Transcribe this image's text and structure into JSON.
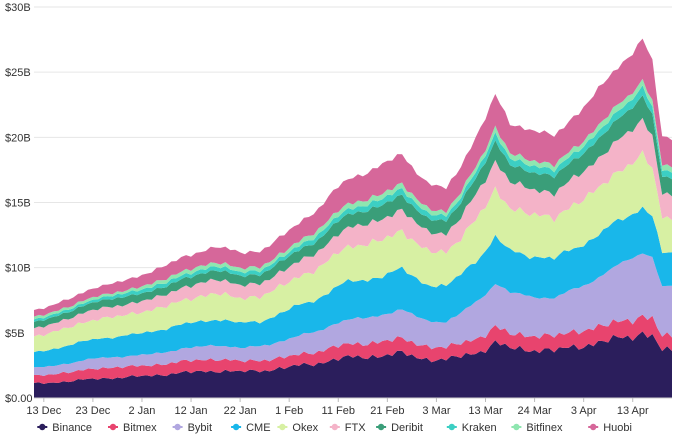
{
  "chart_data": {
    "type": "area",
    "stacked": true,
    "grid": true,
    "legend_position": "bottom",
    "title": "",
    "xlabel": "",
    "ylabel": "",
    "ylim": [
      0,
      30
    ],
    "yticks": [
      {
        "value": 0,
        "label": "$0.00"
      },
      {
        "value": 5,
        "label": "$5B"
      },
      {
        "value": 10,
        "label": "$10B"
      },
      {
        "value": 15,
        "label": "$15B"
      },
      {
        "value": 20,
        "label": "$20B"
      },
      {
        "value": 25,
        "label": "$25B"
      },
      {
        "value": 30,
        "label": "$30B"
      }
    ],
    "xticks": [
      {
        "index": 2,
        "label": "13 Dec"
      },
      {
        "index": 12,
        "label": "23 Dec"
      },
      {
        "index": 22,
        "label": "2 Jan"
      },
      {
        "index": 32,
        "label": "12 Jan"
      },
      {
        "index": 42,
        "label": "22 Jan"
      },
      {
        "index": 52,
        "label": "1 Feb"
      },
      {
        "index": 62,
        "label": "11 Feb"
      },
      {
        "index": 72,
        "label": "21 Feb"
      },
      {
        "index": 82,
        "label": "3 Mar"
      },
      {
        "index": 92,
        "label": "13 Mar"
      },
      {
        "index": 102,
        "label": "24 Mar"
      },
      {
        "index": 112,
        "label": "3 Apr"
      },
      {
        "index": 122,
        "label": "13 Apr"
      }
    ],
    "x_range": [
      0,
      130
    ],
    "x_keys": [
      0,
      8,
      13,
      20,
      26,
      33,
      37,
      42,
      46,
      51,
      58,
      62,
      65,
      72,
      75,
      80,
      84,
      86,
      91,
      94,
      97,
      103,
      106,
      111,
      116,
      121,
      124,
      126,
      128,
      130
    ],
    "series": [
      {
        "name": "Binance",
        "color": "#2b1e5c",
        "values": [
          1.1,
          1.3,
          1.5,
          1.6,
          1.8,
          2.0,
          2.1,
          2.0,
          2.1,
          2.3,
          2.7,
          3.0,
          3.1,
          3.3,
          3.4,
          3.0,
          2.9,
          3.1,
          3.6,
          4.2,
          3.8,
          3.7,
          3.6,
          4.0,
          4.3,
          4.7,
          5.0,
          4.8,
          3.6,
          3.6
        ]
      },
      {
        "name": "Bitmex",
        "color": "#e8446e",
        "values": [
          0.6,
          0.7,
          0.8,
          0.8,
          0.8,
          0.9,
          0.9,
          0.8,
          0.8,
          0.8,
          0.9,
          1.0,
          1.0,
          1.1,
          1.1,
          1.0,
          0.9,
          1.0,
          1.1,
          1.2,
          1.1,
          1.1,
          1.1,
          1.2,
          1.2,
          1.3,
          1.3,
          1.3,
          1.1,
          1.1
        ]
      },
      {
        "name": "Bybit",
        "color": "#b1a7e0",
        "values": [
          0.6,
          0.7,
          0.8,
          0.8,
          0.9,
          1.0,
          1.1,
          1.0,
          1.1,
          1.3,
          1.6,
          1.8,
          1.9,
          2.1,
          2.2,
          2.0,
          2.0,
          2.1,
          3.0,
          3.4,
          3.1,
          3.0,
          2.9,
          3.3,
          4.0,
          4.5,
          5.0,
          4.8,
          3.8,
          3.8
        ]
      },
      {
        "name": "CME",
        "color": "#19b7ea",
        "values": [
          1.2,
          1.4,
          1.5,
          1.6,
          1.8,
          1.9,
          2.0,
          1.9,
          1.9,
          2.2,
          2.5,
          2.8,
          2.9,
          3.0,
          3.1,
          2.8,
          2.7,
          2.9,
          3.3,
          3.5,
          3.2,
          3.1,
          3.0,
          3.2,
          3.3,
          3.4,
          3.5,
          3.2,
          2.5,
          2.5
        ]
      },
      {
        "name": "Okex",
        "color": "#d7f0a3",
        "values": [
          1.2,
          1.4,
          1.5,
          1.6,
          1.7,
          1.9,
          2.0,
          1.9,
          1.9,
          2.1,
          2.3,
          2.6,
          2.7,
          2.8,
          2.9,
          2.6,
          2.6,
          2.7,
          3.3,
          3.6,
          3.3,
          3.2,
          3.1,
          3.4,
          3.6,
          3.9,
          4.0,
          3.6,
          2.8,
          2.6
        ]
      },
      {
        "name": "FTX",
        "color": "#f4b3c8",
        "values": [
          0.6,
          0.7,
          0.8,
          0.8,
          0.9,
          1.0,
          1.1,
          1.0,
          1.0,
          1.1,
          1.3,
          1.4,
          1.5,
          1.6,
          1.6,
          1.5,
          1.4,
          1.5,
          2.0,
          2.2,
          2.0,
          1.9,
          1.9,
          2.1,
          2.3,
          2.5,
          2.7,
          2.5,
          1.8,
          1.8
        ]
      },
      {
        "name": "Deribit",
        "color": "#3a9e79",
        "values": [
          0.5,
          0.5,
          0.6,
          0.6,
          0.6,
          0.7,
          0.7,
          0.7,
          0.7,
          0.8,
          0.9,
          1.0,
          1.0,
          1.1,
          1.1,
          1.0,
          1.0,
          1.1,
          1.3,
          1.5,
          1.3,
          1.3,
          1.3,
          1.4,
          1.5,
          1.7,
          1.8,
          1.6,
          1.3,
          1.3
        ]
      },
      {
        "name": "Kraken",
        "color": "#3ccfc3",
        "values": [
          0.2,
          0.2,
          0.2,
          0.3,
          0.3,
          0.3,
          0.3,
          0.3,
          0.3,
          0.3,
          0.4,
          0.4,
          0.4,
          0.5,
          0.5,
          0.4,
          0.4,
          0.4,
          0.5,
          0.6,
          0.5,
          0.5,
          0.5,
          0.5,
          0.6,
          0.6,
          0.7,
          0.6,
          0.5,
          0.5
        ]
      },
      {
        "name": "Bitfinex",
        "color": "#8fe6b0",
        "values": [
          0.2,
          0.2,
          0.2,
          0.2,
          0.3,
          0.3,
          0.3,
          0.3,
          0.3,
          0.3,
          0.4,
          0.4,
          0.4,
          0.4,
          0.4,
          0.4,
          0.3,
          0.4,
          0.4,
          0.5,
          0.4,
          0.4,
          0.4,
          0.4,
          0.5,
          0.5,
          0.5,
          0.5,
          0.4,
          0.4
        ]
      },
      {
        "name": "Huobi",
        "color": "#d6679a",
        "values": [
          0.5,
          0.6,
          0.7,
          0.8,
          1.0,
          1.1,
          1.2,
          1.2,
          1.2,
          1.3,
          1.6,
          1.8,
          2.0,
          2.2,
          2.3,
          1.9,
          1.8,
          1.9,
          2.3,
          2.5,
          2.3,
          2.3,
          2.2,
          2.5,
          2.8,
          3.0,
          3.2,
          2.9,
          2.2,
          2.2
        ]
      }
    ]
  }
}
